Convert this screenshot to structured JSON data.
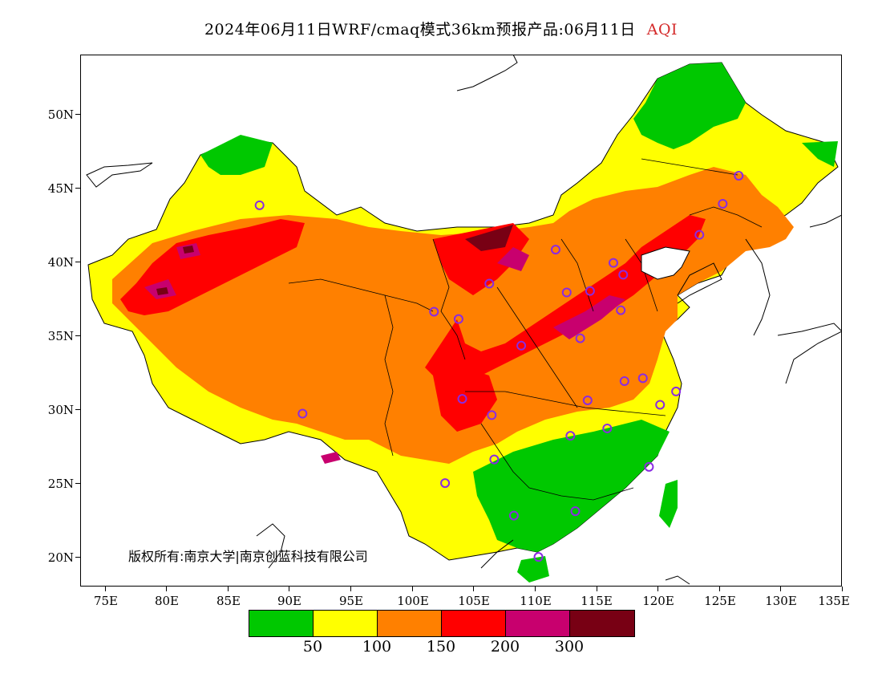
{
  "title": {
    "main": "2024年06月11日WRF/cmaq模式36km预报产品:06月11日",
    "variable": "AQI",
    "variable_color": "#d42a2a"
  },
  "axes": {
    "lat_labels": [
      "50N",
      "45N",
      "40N",
      "35N",
      "30N",
      "25N",
      "20N"
    ],
    "lon_labels": [
      "75E",
      "80E",
      "85E",
      "90E",
      "95E",
      "100E",
      "105E",
      "110E",
      "115E",
      "120E",
      "125E",
      "130E",
      "135E"
    ]
  },
  "legend": {
    "colors": [
      "#00c800",
      "#ffff00",
      "#ff8000",
      "#ff0000",
      "#c8006e",
      "#780014"
    ],
    "labels": [
      "50",
      "100",
      "150",
      "200",
      "300"
    ]
  },
  "copyright": "版权所有:南京大学|南京创蓝科技有限公司",
  "station_color": "#8a2be2",
  "extent": {
    "lon": [
      73,
      135
    ],
    "lat": [
      18,
      54
    ]
  },
  "stations": [
    {
      "lon": 87.6,
      "lat": 43.8
    },
    {
      "lon": 91.1,
      "lat": 29.7
    },
    {
      "lon": 101.8,
      "lat": 36.6
    },
    {
      "lon": 103.8,
      "lat": 36.1
    },
    {
      "lon": 106.3,
      "lat": 38.5
    },
    {
      "lon": 111.7,
      "lat": 40.8
    },
    {
      "lon": 112.6,
      "lat": 37.9
    },
    {
      "lon": 114.5,
      "lat": 38.0
    },
    {
      "lon": 116.4,
      "lat": 39.9
    },
    {
      "lon": 117.2,
      "lat": 39.1
    },
    {
      "lon": 117.0,
      "lat": 36.7
    },
    {
      "lon": 113.7,
      "lat": 34.8
    },
    {
      "lon": 108.9,
      "lat": 34.3
    },
    {
      "lon": 104.1,
      "lat": 30.7
    },
    {
      "lon": 106.5,
      "lat": 29.6
    },
    {
      "lon": 106.7,
      "lat": 26.6
    },
    {
      "lon": 102.7,
      "lat": 25.0
    },
    {
      "lon": 108.3,
      "lat": 22.8
    },
    {
      "lon": 110.3,
      "lat": 20.0
    },
    {
      "lon": 113.3,
      "lat": 23.1
    },
    {
      "lon": 112.9,
      "lat": 28.2
    },
    {
      "lon": 115.9,
      "lat": 28.7
    },
    {
      "lon": 114.3,
      "lat": 30.6
    },
    {
      "lon": 117.3,
      "lat": 31.9
    },
    {
      "lon": 118.8,
      "lat": 32.1
    },
    {
      "lon": 120.2,
      "lat": 30.3
    },
    {
      "lon": 121.5,
      "lat": 31.2
    },
    {
      "lon": 119.3,
      "lat": 26.1
    },
    {
      "lon": 123.4,
      "lat": 41.8
    },
    {
      "lon": 125.3,
      "lat": 43.9
    },
    {
      "lon": 126.6,
      "lat": 45.8
    }
  ]
}
